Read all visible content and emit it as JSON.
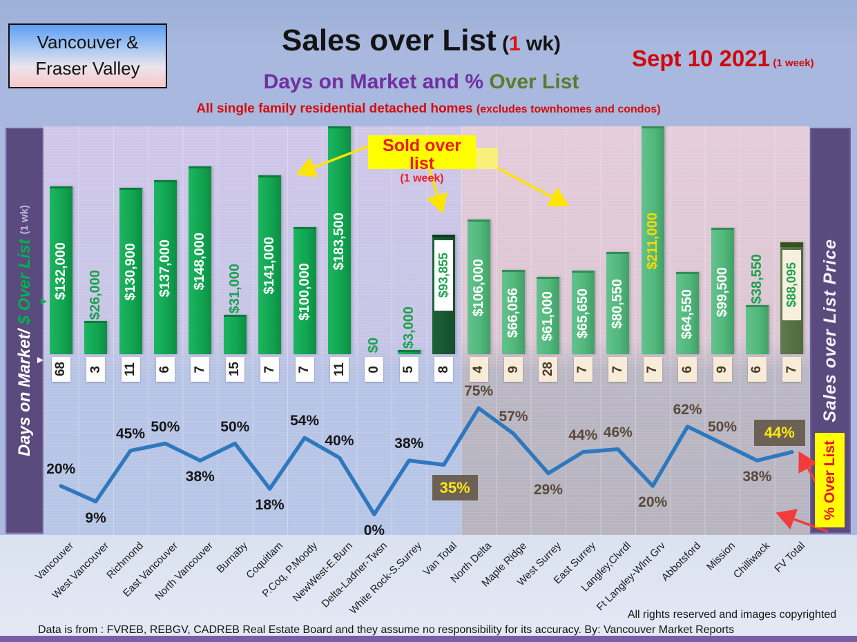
{
  "header": {
    "region_box": {
      "line1": "Vancouver &",
      "line2": "Fraser Valley"
    },
    "title": {
      "main": "Sales over List",
      "pre": " (",
      "one": "1",
      "post": " wk)"
    },
    "date": {
      "main": "Sept 10  2021",
      "note": "(1 week)"
    },
    "subtitle": {
      "p1": "Days on Market and % ",
      "p2": "Over List"
    },
    "tagline": {
      "p1": "All single family residential detached homes ",
      "p2": "(excludes townhomes and condos)"
    }
  },
  "axes": {
    "left_label": {
      "p1": "Days on Market/",
      "p2": " $ Over List ",
      "p3": "(1 wk)"
    },
    "right_label": "Sales over List Price"
  },
  "callouts": {
    "sold_over_list": {
      "line1": "Sold over list",
      "line2": "(1 week)"
    },
    "pct_over_list": "% Over List"
  },
  "footer": {
    "rights": "All rights reserved and  images copyrighted",
    "source": "Data is from : FVREB, REBGV, CADREB Real Estate Board and they assume no responsibility for its accuracy. By: Vancouver Market Reports"
  },
  "colors": {
    "bar_green_vancouver": "#12a551",
    "bar_green_fraser_valley": "#52b87b",
    "bar_dark_van_total": "#154f2c",
    "bar_dark_fv_total": "#4d693d",
    "line_blue": "#2e78be",
    "sidebar_purple": "#5b4a7d",
    "highlight_yellow": "#ffff00",
    "callout_red": "#ec1c24",
    "subtitle_purple": "#7030a0",
    "subtitle_olive": "#5b7a2c",
    "badge_gray": "#6d6156",
    "badge_text_yellow": "#ffe715"
  },
  "chart_data": {
    "type": "combo: bar ($ sold over list) + line (% over list) + days-on-market labels",
    "title": "Sales over List (1 wk)",
    "subtitle": "Days on Market and % Over List",
    "note": "All single family residential detached homes (excludes townhomes and condos)",
    "date": "Sept 10 2021 (1 week)",
    "legend_position": "none",
    "grid": true,
    "categories": [
      "Vancouver",
      "West Vancouver",
      "Richmond",
      "East Vancouver",
      "North Vancouver",
      "Burnaby",
      "Coquitlam",
      "P.Coq, P.Moody",
      "NewWest-E.Burn",
      "Delta-Ladner-Twsn",
      "White Rock-S.Surrey",
      "Van Total",
      "North Delta",
      "Maple Ridge",
      "West Surrey",
      "East Surrey",
      "Langley,Clvrdl",
      "Ft Langley-Wlnt Grv",
      "Abbotsford",
      "Mission",
      "Chilliwack",
      "FV Total"
    ],
    "fraser_valley_start_index": 12,
    "total_indices": [
      11,
      21
    ],
    "series": [
      {
        "name": "$ Over List (1 wk)",
        "type": "bar",
        "values": [
          132000,
          26000,
          130900,
          137000,
          148000,
          31000,
          141000,
          100000,
          183500,
          0,
          3000,
          93855,
          106000,
          66056,
          61000,
          65650,
          80550,
          211000,
          64550,
          99500,
          38550,
          88095
        ],
        "labels": [
          "$132,000",
          "$26,000",
          "$130,900",
          "$137,000",
          "$148,000",
          "$31,000",
          "$141,000",
          "$100,000",
          "$183,500",
          "$0",
          "$3,000",
          "$93,855",
          "$106,000",
          "$66,056",
          "$61,000",
          "$65,650",
          "$80,550",
          "$211,000",
          "$64,550",
          "$99,500",
          "$38,550",
          "$88,095"
        ],
        "label_placement": [
          "inside",
          "above",
          "inside",
          "inside",
          "inside",
          "above",
          "inside",
          "inside",
          "inside",
          "above",
          "above",
          "boxed",
          "inside",
          "inside",
          "inside",
          "inside",
          "inside",
          "inside",
          "inside",
          "inside",
          "above",
          "boxed"
        ]
      },
      {
        "name": "Days on Market",
        "type": "category-label-row",
        "values": [
          68,
          3,
          11,
          6,
          7,
          15,
          7,
          7,
          11,
          0,
          5,
          8,
          4,
          9,
          28,
          7,
          7,
          7,
          6,
          9,
          6,
          7
        ]
      },
      {
        "name": "% Over List",
        "type": "line",
        "values": [
          20,
          9,
          45,
          50,
          38,
          50,
          18,
          54,
          40,
          0,
          38,
          35,
          75,
          57,
          29,
          44,
          46,
          20,
          62,
          50,
          38,
          44
        ],
        "labels": [
          "20%",
          "9%",
          "45%",
          "50%",
          "38%",
          "50%",
          "18%",
          "54%",
          "40%",
          "0%",
          "38%",
          "35%",
          "75%",
          "57%",
          "29%",
          "44%",
          "46%",
          "20%",
          "62%",
          "50%",
          "38%",
          "44%"
        ],
        "label_placement": [
          "above",
          "below",
          "above",
          "above",
          "below",
          "above",
          "below",
          "above",
          "above",
          "below",
          "above",
          "box-below",
          "above",
          "above",
          "below",
          "above",
          "above",
          "below",
          "above",
          "above",
          "below",
          "box-above"
        ]
      }
    ]
  }
}
